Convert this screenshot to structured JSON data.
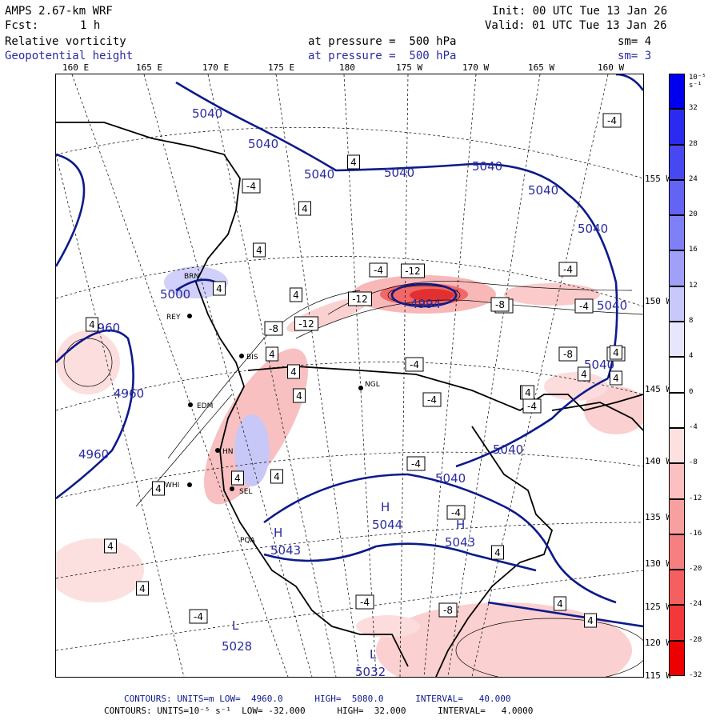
{
  "header": {
    "model": "AMPS 2.67-km WRF",
    "init": "Init: 00 UTC Tue 13 Jan 26",
    "fcst_label": "Fcst:",
    "fcst_value": "1 h",
    "valid": "Valid: 01 UTC Tue 13 Jan 26",
    "field1_name": "Relative vorticity",
    "field1_pressure": "at pressure =  500 hPa",
    "field1_sm": "sm= 4",
    "field2_name": "Geopotential height",
    "field2_pressure": "at pressure =  500 hPa",
    "field2_sm": "sm= 3"
  },
  "longitude_labels": [
    "160 E",
    "165 E",
    "170 E",
    "175 E",
    "180",
    "175 W",
    "170 W",
    "165 W",
    "160 W"
  ],
  "latitude_labels": [
    "155 W",
    "150 W",
    "145 W",
    "140 W",
    "135 W",
    "130 W",
    "125 W",
    "120 W",
    "115 W"
  ],
  "colorbar": {
    "unit": "10⁻⁵ s⁻¹",
    "ticks": [
      "32",
      "28",
      "24",
      "20",
      "16",
      "12",
      "8",
      "4",
      "0",
      "-4",
      "-8",
      "-12",
      "-16",
      "-20",
      "-24",
      "-28",
      "-32"
    ],
    "colors": [
      "#0000ee",
      "#2b2bf0",
      "#4848f2",
      "#6464f4",
      "#8080f6",
      "#a0a0f8",
      "#c8c8fb",
      "#e6e6fd",
      "#ffffff",
      "#ffffff",
      "#fde0e0",
      "#fbc0c0",
      "#f8a0a0",
      "#f68080",
      "#f46060",
      "#f23838",
      "#ee0000"
    ]
  },
  "stations": [
    "REY",
    "BIS",
    "NGL",
    "EDM",
    "HN",
    "SEL",
    "WHI",
    "BRN",
    "PQA"
  ],
  "height_labels": [
    "5040",
    "5040",
    "5040",
    "5040",
    "5040",
    "5040",
    "5040",
    "5040",
    "5040",
    "5040",
    "5040",
    "4960",
    "4960",
    "4960",
    "5000",
    "4994",
    "5044",
    "5043",
    "5043",
    "5028",
    "5032"
  ],
  "centers": [
    "H",
    "H",
    "H",
    "L",
    "L"
  ],
  "vort_boxes": [
    "-4",
    "-4",
    "4",
    "4",
    "4",
    "4",
    "-4",
    "-12",
    "-12",
    "-8",
    "-12",
    "-4",
    "-8",
    "4",
    "4",
    "4",
    "4",
    "4",
    "-4",
    "-4",
    "-4",
    "-4",
    "-8",
    "-8",
    "4",
    "4",
    "4",
    "4",
    "-4",
    "4",
    "4",
    "4",
    "4",
    "4",
    "-4",
    "-4",
    "-4",
    "-8",
    "4",
    "4",
    "-4",
    "4",
    "4"
  ],
  "footer": {
    "line1": "CONTOURS: UNITS=m LOW=  4960.0      HIGH=  5080.0      INTERVAL=   40.000",
    "line2": "CONTOURS: UNITS=10⁻⁵ s⁻¹  LOW= -32.000      HIGH=  32.000      INTERVAL=   4.0000"
  }
}
